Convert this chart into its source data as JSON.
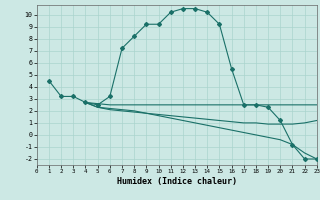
{
  "xlabel": "Humidex (Indice chaleur)",
  "bg_color": "#cce8e4",
  "grid_color": "#aad4ce",
  "line_color": "#1a7068",
  "xlim": [
    0,
    23
  ],
  "ylim": [
    -2.5,
    10.8
  ],
  "xticks": [
    0,
    1,
    2,
    3,
    4,
    5,
    6,
    7,
    8,
    9,
    10,
    11,
    12,
    13,
    14,
    15,
    16,
    17,
    18,
    19,
    20,
    21,
    22,
    23
  ],
  "yticks": [
    -2,
    -1,
    0,
    1,
    2,
    3,
    4,
    5,
    6,
    7,
    8,
    9,
    10
  ],
  "curve1_x": [
    1,
    2,
    3,
    4,
    5,
    6,
    7,
    8,
    9,
    10,
    11,
    12,
    13,
    14,
    15,
    16,
    17,
    18,
    19,
    20,
    21,
    22,
    23
  ],
  "curve1_y": [
    4.5,
    3.2,
    3.2,
    2.7,
    2.5,
    3.2,
    7.2,
    8.2,
    9.2,
    9.2,
    10.2,
    10.5,
    10.5,
    10.2,
    9.2,
    5.5,
    2.5,
    2.5,
    2.3,
    1.2,
    -0.8,
    -2.0,
    -2.0
  ],
  "curve2_x": [
    4,
    6,
    7,
    8,
    9,
    10,
    11,
    12,
    13,
    14,
    15,
    16,
    17,
    18,
    19,
    20,
    21,
    22,
    23
  ],
  "curve2_y": [
    2.7,
    2.5,
    2.5,
    2.5,
    2.5,
    2.5,
    2.5,
    2.5,
    2.5,
    2.5,
    2.5,
    2.5,
    2.5,
    2.5,
    2.5,
    2.5,
    2.5,
    2.5,
    2.5
  ],
  "curve3_x": [
    4,
    5,
    6,
    7,
    8,
    9,
    10,
    11,
    12,
    13,
    14,
    15,
    16,
    17,
    18,
    19,
    20,
    21,
    22,
    23
  ],
  "curve3_y": [
    2.7,
    2.3,
    2.2,
    2.1,
    2.0,
    1.8,
    1.6,
    1.4,
    1.2,
    1.0,
    0.8,
    0.6,
    0.4,
    0.2,
    0.0,
    -0.2,
    -0.4,
    -0.8,
    -1.5,
    -2.0
  ],
  "curve4_x": [
    4,
    5,
    6,
    7,
    8,
    9,
    10,
    11,
    12,
    13,
    14,
    15,
    16,
    17,
    18,
    19,
    20,
    21,
    22,
    23
  ],
  "curve4_y": [
    2.7,
    2.3,
    2.1,
    2.0,
    1.9,
    1.8,
    1.7,
    1.6,
    1.5,
    1.4,
    1.3,
    1.2,
    1.1,
    1.0,
    1.0,
    0.9,
    0.9,
    0.9,
    1.0,
    1.2
  ]
}
